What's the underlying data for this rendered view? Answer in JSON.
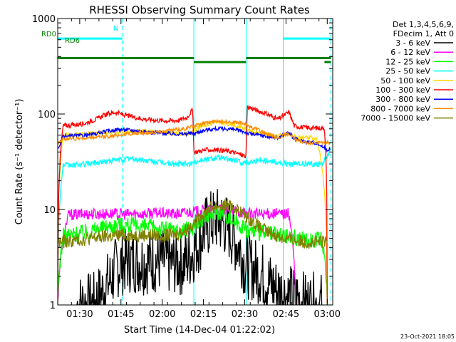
{
  "chart_data": {
    "type": "line",
    "title": "RHESSI Observing Summary Count Rates",
    "xlabel": "Start Time (14-Dec-04 01:22:02)",
    "ylabel": "Count Rate (s⁻¹ detector⁻¹)",
    "x_range_min": [
      82,
      182
    ],
    "y_range": [
      1,
      1000
    ],
    "y_scale": "log",
    "x_ticks": [
      {
        "min": 90,
        "label": "01:30"
      },
      {
        "min": 105,
        "label": "01:45"
      },
      {
        "min": 120,
        "label": "02:00"
      },
      {
        "min": 135,
        "label": "02:15"
      },
      {
        "min": 150,
        "label": "02:30"
      },
      {
        "min": 165,
        "label": "02:45"
      },
      {
        "min": 180,
        "label": "03:00"
      }
    ],
    "y_ticks": [
      {
        "v": 1,
        "label": "1"
      },
      {
        "v": 10,
        "label": "10"
      },
      {
        "v": 100,
        "label": "100"
      },
      {
        "v": 1000,
        "label": "1000"
      }
    ],
    "legend_header": [
      "Det 1,3,4,5,6,9,",
      "FDecim 1, Att 0"
    ],
    "series": [
      {
        "name": "3 - 6 keV",
        "color": "#000000",
        "x": [
          89,
          92,
          95,
          98,
          101,
          104,
          107,
          110,
          113,
          116,
          119,
          122,
          125,
          128,
          131,
          132,
          134,
          136,
          138,
          140,
          142,
          144,
          146,
          148,
          150,
          152,
          154,
          156,
          158,
          160,
          162,
          164,
          166,
          168,
          170,
          172,
          174,
          176,
          178
        ],
        "y": [
          1,
          1,
          1,
          1.3,
          1.8,
          2.6,
          2.9,
          2.9,
          2.8,
          2.9,
          2.9,
          2.8,
          2.8,
          2.7,
          3.5,
          4,
          5,
          6.5,
          7.5,
          7.8,
          7.3,
          6.4,
          5,
          4,
          2.6,
          2.5,
          2.3,
          2.2,
          1.8,
          1.6,
          1.4,
          1.3,
          1.2,
          1.2,
          1.1,
          1,
          1,
          1,
          1
        ]
      },
      {
        "name": "6 - 12 keV",
        "color": "#ff00ff",
        "x": [
          82,
          86,
          90,
          94,
          98,
          102,
          106,
          110,
          114,
          118,
          122,
          126,
          130,
          131.5,
          134,
          137,
          140,
          143,
          146,
          149,
          150.5,
          154,
          158,
          162,
          166,
          168.5
        ],
        "y": [
          1,
          8.8,
          8.9,
          9,
          9,
          9,
          8.9,
          9,
          9,
          9.2,
          9,
          9,
          9.5,
          9.5,
          9.6,
          9.8,
          9.9,
          9.7,
          9.6,
          9.4,
          9.2,
          9,
          9,
          9,
          9,
          1
        ]
      },
      {
        "name": "12 - 25 keV",
        "color": "#00ff00",
        "x": [
          82,
          84,
          88,
          92,
          96,
          100,
          104,
          108,
          112,
          116,
          120,
          124,
          128,
          131.5,
          134,
          137,
          140,
          143,
          146,
          149,
          150.5,
          154,
          158,
          162,
          166,
          170,
          174,
          178,
          180
        ],
        "y": [
          1,
          5.2,
          5.5,
          5.8,
          6.2,
          6.6,
          6.9,
          6.9,
          6.7,
          6.5,
          6.3,
          6.1,
          6,
          6.6,
          7.5,
          8.8,
          9.8,
          8.9,
          7.6,
          6.8,
          6.2,
          5.8,
          5.6,
          5.4,
          5.2,
          5,
          4.8,
          4.8,
          1
        ]
      },
      {
        "name": "25 - 50 keV",
        "color": "#00ffff",
        "x": [
          82,
          84,
          88,
          92,
          96,
          100,
          104,
          108,
          112,
          116,
          120,
          124,
          128,
          131,
          131.5,
          134,
          137,
          140,
          143,
          146,
          149,
          150.5,
          152,
          156,
          160,
          164,
          166,
          170,
          174,
          178,
          180,
          181
        ],
        "y": [
          1,
          29,
          29,
          30,
          31,
          32,
          33,
          34,
          33,
          32,
          31,
          30,
          30,
          30,
          31,
          33,
          34,
          35,
          34,
          33,
          31,
          31,
          32,
          33,
          32,
          30,
          30,
          30,
          30,
          30,
          36,
          40
        ]
      },
      {
        "name": "50 - 100 keV",
        "color": "#ffd700",
        "x": [
          82,
          84,
          88,
          92,
          96,
          100,
          104,
          108,
          112,
          116,
          120,
          124,
          128,
          130,
          131.5,
          134,
          137,
          140,
          143,
          146,
          149,
          151,
          154,
          158,
          162,
          164,
          166,
          168,
          172,
          176,
          180
        ],
        "y": [
          1,
          60,
          61,
          62,
          63,
          64,
          65,
          66,
          66,
          65,
          64,
          63,
          62,
          63,
          66,
          74,
          80,
          82,
          80,
          76,
          72,
          68,
          64,
          61,
          58,
          60,
          62,
          58,
          56,
          56,
          1
        ]
      },
      {
        "name": "100 - 300 keV",
        "color": "#ff0000",
        "x": [
          82,
          84,
          86,
          88,
          92,
          96,
          100,
          103,
          106,
          110,
          114,
          118,
          122,
          126,
          129,
          131,
          131.5,
          132,
          136,
          140,
          144,
          148,
          150.5,
          151,
          154,
          158,
          162,
          164,
          166,
          168,
          172,
          176,
          179,
          180
        ],
        "y": [
          1,
          75,
          76,
          77,
          80,
          88,
          100,
          104,
          98,
          92,
          88,
          86,
          85,
          86,
          92,
          110,
          40,
          40,
          42,
          42,
          41,
          38,
          36,
          120,
          110,
          100,
          88,
          95,
          105,
          75,
          72,
          71,
          71,
          1
        ]
      },
      {
        "name": "300 - 800 keV",
        "color": "#0000ff",
        "x": [
          82,
          84,
          88,
          92,
          96,
          100,
          104,
          108,
          112,
          116,
          120,
          124,
          128,
          131,
          131.5,
          134,
          137,
          140,
          143,
          146,
          149,
          151,
          154,
          158,
          162,
          164,
          166,
          168,
          172,
          176,
          180,
          181
        ],
        "y": [
          42,
          58,
          59,
          60,
          62,
          66,
          69,
          68,
          66,
          64,
          63,
          62,
          62,
          63,
          62,
          66,
          69,
          70,
          70,
          69,
          66,
          63,
          61,
          58,
          56,
          60,
          64,
          55,
          51,
          50,
          42,
          44
        ]
      },
      {
        "name": "800 - 7000 keV",
        "color": "#ff8c00",
        "x": [
          82,
          84,
          88,
          92,
          96,
          100,
          104,
          108,
          112,
          116,
          120,
          124,
          128,
          131,
          134,
          137,
          140,
          143,
          146,
          149,
          151,
          154,
          158,
          162,
          164,
          166,
          168,
          172,
          176,
          180,
          181
        ],
        "y": [
          50,
          55,
          55,
          56,
          57,
          58,
          60,
          62,
          63,
          64,
          66,
          68,
          70,
          74,
          78,
          82,
          84,
          84,
          82,
          80,
          76,
          70,
          62,
          56,
          60,
          62,
          54,
          50,
          50,
          50,
          50
        ]
      },
      {
        "name": "7000 - 15000 keV",
        "color": "#808000",
        "x": [
          82,
          85,
          90,
          95,
          100,
          105,
          110,
          115,
          120,
          125,
          128,
          131,
          134,
          137,
          140,
          143,
          146,
          149,
          152,
          155,
          158,
          161,
          164,
          167,
          170,
          175,
          180
        ],
        "y": [
          4.5,
          4.6,
          4.8,
          5,
          5.2,
          5.4,
          5.4,
          5.4,
          5.3,
          5.4,
          6,
          7,
          8.5,
          10,
          11,
          11,
          10.5,
          9.2,
          7.8,
          6.6,
          5.8,
          5.4,
          5,
          4.8,
          4.6,
          4.5,
          4.5
        ]
      }
    ],
    "vlines": [
      {
        "min": 82,
        "color": "#00ffff",
        "style": "solid"
      },
      {
        "min": 105.5,
        "color": "#00ffff",
        "style": "dashed"
      },
      {
        "min": 131.5,
        "color": "#00ffff",
        "style": "solid"
      },
      {
        "min": 150.5,
        "color": "#00ffff",
        "style": "solid"
      },
      {
        "min": 164,
        "color": "#00ffff",
        "style": "solid"
      },
      {
        "min": 181.3,
        "color": "#00ffff",
        "style": "dashed"
      }
    ],
    "flags": [
      {
        "label": "N",
        "color": "#00ffff",
        "min_level": 0.93,
        "segments": [
          [
            82,
            105.5
          ],
          [
            164,
            181.3
          ]
        ]
      },
      {
        "label": "RD0",
        "color": "#008000",
        "min_level": 0.862,
        "segments": [
          [
            82,
            131.5
          ],
          [
            150.5,
            181.3
          ]
        ]
      },
      {
        "label": "RD6",
        "color": "#008000",
        "min_level": 0.848,
        "segments": [
          [
            131.5,
            150.5
          ],
          [
            179,
            181.3
          ]
        ]
      }
    ]
  },
  "footer": {
    "date": "23-Oct-2021 18:05"
  }
}
